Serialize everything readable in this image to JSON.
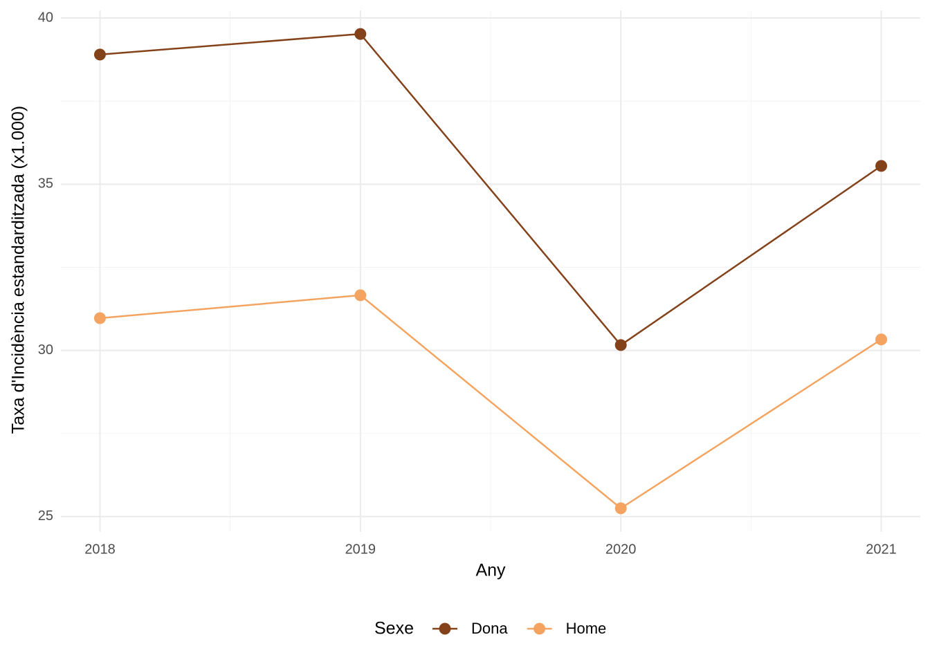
{
  "chart_data": {
    "type": "line",
    "x_label": "Any",
    "y_label": "Taxa d'Incidència estandarditzada (x1.000)",
    "x": [
      2018,
      2019,
      2020,
      2021
    ],
    "series": [
      {
        "name": "Dona",
        "color": "#84421a",
        "values": [
          38.9,
          39.52,
          30.16,
          35.55
        ]
      },
      {
        "name": "Home",
        "color": "#f4a460",
        "values": [
          30.97,
          31.66,
          25.25,
          30.33
        ]
      }
    ],
    "xlim": [
      2017.85,
      2021.15
    ],
    "xticks": [
      2018,
      2019,
      2020,
      2021
    ],
    "ylim": [
      24.54,
      40.23
    ],
    "yticks": [
      25,
      30,
      35,
      40
    ],
    "grid": true,
    "legend_title": "Sexe",
    "legend_position": "bottom"
  }
}
